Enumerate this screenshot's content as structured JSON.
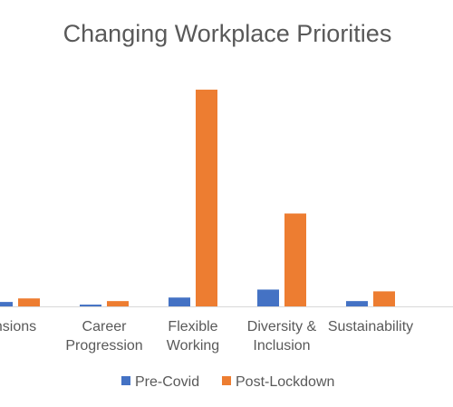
{
  "chart_data": {
    "type": "bar",
    "title": "Changing Workplace Priorities",
    "categories": [
      "Pensions",
      "Career Progression",
      "Flexible Working",
      "Diversity & Inclusion",
      "Sustainability"
    ],
    "category_label_lines": [
      [
        "nsions"
      ],
      [
        "Career",
        "Progression"
      ],
      [
        "Flexible",
        "Working"
      ],
      [
        "Diversity &",
        "Inclusion"
      ],
      [
        "Sustainability"
      ]
    ],
    "series": [
      {
        "name": "Pre-Covid",
        "color": "#4472C4",
        "values": [
          5,
          2,
          10,
          19,
          6
        ]
      },
      {
        "name": "Post-Lockdown",
        "color": "#ED7D31",
        "values": [
          9,
          6,
          245,
          105,
          17
        ]
      }
    ],
    "ylim": [
      0,
      250
    ],
    "grid": false,
    "legend_position": "bottom"
  }
}
